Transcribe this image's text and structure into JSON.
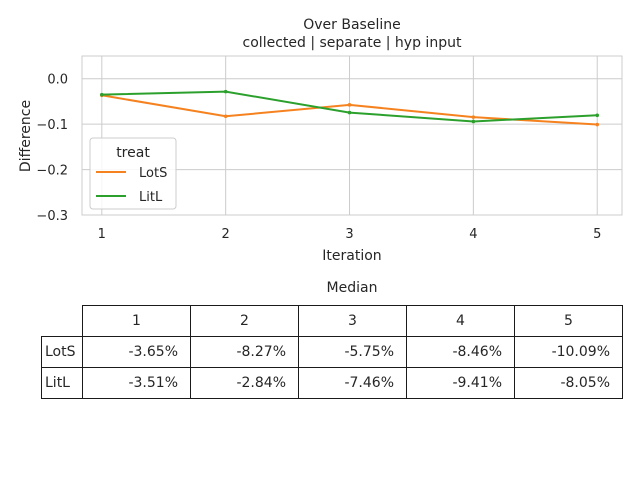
{
  "chart_data": {
    "type": "line",
    "title": "Over Baseline",
    "subtitle": "collected | separate | hyp input",
    "xlabel": "Iteration",
    "ylabel": "Difference",
    "x": [
      1,
      2,
      3,
      4,
      5
    ],
    "xticks": [
      "1",
      "2",
      "3",
      "4",
      "5"
    ],
    "yticks": [
      "0.0",
      "−0.1",
      "−0.2",
      "−0.3"
    ],
    "ylim": [
      -0.3,
      0.05
    ],
    "grid": true,
    "legend": {
      "title": "treat",
      "placement": "lower-left"
    },
    "series": [
      {
        "name": "LotS",
        "color": "#f5821f",
        "values": [
          -0.0365,
          -0.0827,
          -0.0575,
          -0.0846,
          -0.1009
        ]
      },
      {
        "name": "LitL",
        "color": "#2ca02c",
        "values": [
          -0.0351,
          -0.0284,
          -0.0746,
          -0.0941,
          -0.0805
        ]
      }
    ]
  },
  "table": {
    "title": "Median",
    "columns": [
      "1",
      "2",
      "3",
      "4",
      "5"
    ],
    "rows": [
      {
        "label": "LotS",
        "cells": [
          "-3.65%",
          "-8.27%",
          "-5.75%",
          "-8.46%",
          "-10.09%"
        ]
      },
      {
        "label": "LitL",
        "cells": [
          "-3.51%",
          "-2.84%",
          "-7.46%",
          "-9.41%",
          "-8.05%"
        ]
      }
    ]
  }
}
